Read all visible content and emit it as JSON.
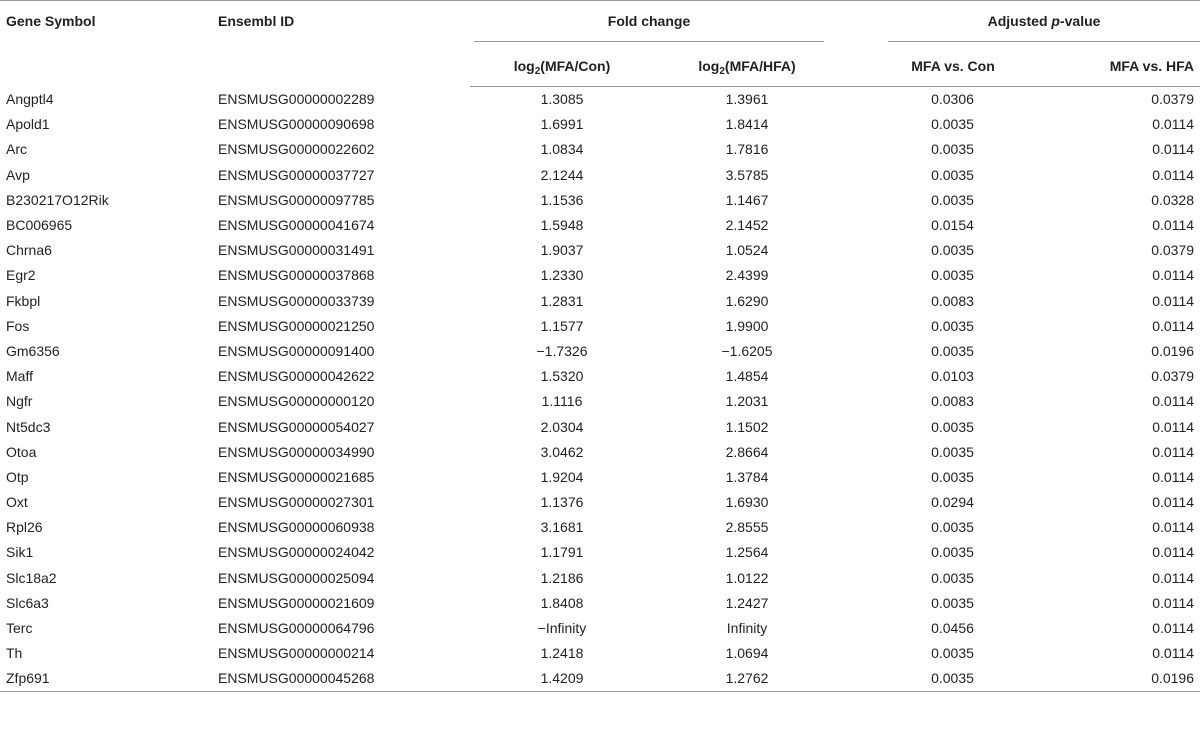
{
  "header": {
    "gene_symbol": "Gene Symbol",
    "ensembl_id": "Ensembl ID",
    "fold_change": "Fold change",
    "adjusted_pre": "Adjusted ",
    "adjusted_p": "p",
    "adjusted_post": "-value",
    "log_prefix": "log",
    "log_sub": "2",
    "fc1_suffix": "(MFA/Con)",
    "fc2_suffix": "(MFA/HFA)",
    "pv1": "MFA vs. Con",
    "pv2": "MFA vs. HFA"
  },
  "rows": [
    [
      "Angptl4",
      "ENSMUSG00000002289",
      "1.3085",
      "1.3961",
      "0.0306",
      "0.0379"
    ],
    [
      "Apold1",
      "ENSMUSG00000090698",
      "1.6991",
      "1.8414",
      "0.0035",
      "0.0114"
    ],
    [
      "Arc",
      "ENSMUSG00000022602",
      "1.0834",
      "1.7816",
      "0.0035",
      "0.0114"
    ],
    [
      "Avp",
      "ENSMUSG00000037727",
      "2.1244",
      "3.5785",
      "0.0035",
      "0.0114"
    ],
    [
      "B230217O12Rik",
      "ENSMUSG00000097785",
      "1.1536",
      "1.1467",
      "0.0035",
      "0.0328"
    ],
    [
      "BC006965",
      "ENSMUSG00000041674",
      "1.5948",
      "2.1452",
      "0.0154",
      "0.0114"
    ],
    [
      "Chrna6",
      "ENSMUSG00000031491",
      "1.9037",
      "1.0524",
      "0.0035",
      "0.0379"
    ],
    [
      "Egr2",
      "ENSMUSG00000037868",
      "1.2330",
      "2.4399",
      "0.0035",
      "0.0114"
    ],
    [
      "Fkbpl",
      "ENSMUSG00000033739",
      "1.2831",
      "1.6290",
      "0.0083",
      "0.0114"
    ],
    [
      "Fos",
      "ENSMUSG00000021250",
      "1.1577",
      "1.9900",
      "0.0035",
      "0.0114"
    ],
    [
      "Gm6356",
      "ENSMUSG00000091400",
      "−1.7326",
      "−1.6205",
      "0.0035",
      "0.0196"
    ],
    [
      "Maff",
      "ENSMUSG00000042622",
      "1.5320",
      "1.4854",
      "0.0103",
      "0.0379"
    ],
    [
      "Ngfr",
      "ENSMUSG00000000120",
      "1.1116",
      "1.2031",
      "0.0083",
      "0.0114"
    ],
    [
      "Nt5dc3",
      "ENSMUSG00000054027",
      "2.0304",
      "1.1502",
      "0.0035",
      "0.0114"
    ],
    [
      "Otoa",
      "ENSMUSG00000034990",
      "3.0462",
      "2.8664",
      "0.0035",
      "0.0114"
    ],
    [
      "Otp",
      "ENSMUSG00000021685",
      "1.9204",
      "1.3784",
      "0.0035",
      "0.0114"
    ],
    [
      "Oxt",
      "ENSMUSG00000027301",
      "1.1376",
      "1.6930",
      "0.0294",
      "0.0114"
    ],
    [
      "Rpl26",
      "ENSMUSG00000060938",
      "3.1681",
      "2.8555",
      "0.0035",
      "0.0114"
    ],
    [
      "Sik1",
      "ENSMUSG00000024042",
      "1.1791",
      "1.2564",
      "0.0035",
      "0.0114"
    ],
    [
      "Slc18a2",
      "ENSMUSG00000025094",
      "1.2186",
      "1.0122",
      "0.0035",
      "0.0114"
    ],
    [
      "Slc6a3",
      "ENSMUSG00000021609",
      "1.8408",
      "1.2427",
      "0.0035",
      "0.0114"
    ],
    [
      "Terc",
      "ENSMUSG00000064796",
      "−Infinity",
      "Infinity",
      "0.0456",
      "0.0114"
    ],
    [
      "Th",
      "ENSMUSG00000000214",
      "1.2418",
      "1.0694",
      "0.0035",
      "0.0114"
    ],
    [
      "Zfp691",
      "ENSMUSG00000045268",
      "1.4209",
      "1.2762",
      "0.0035",
      "0.0196"
    ]
  ]
}
